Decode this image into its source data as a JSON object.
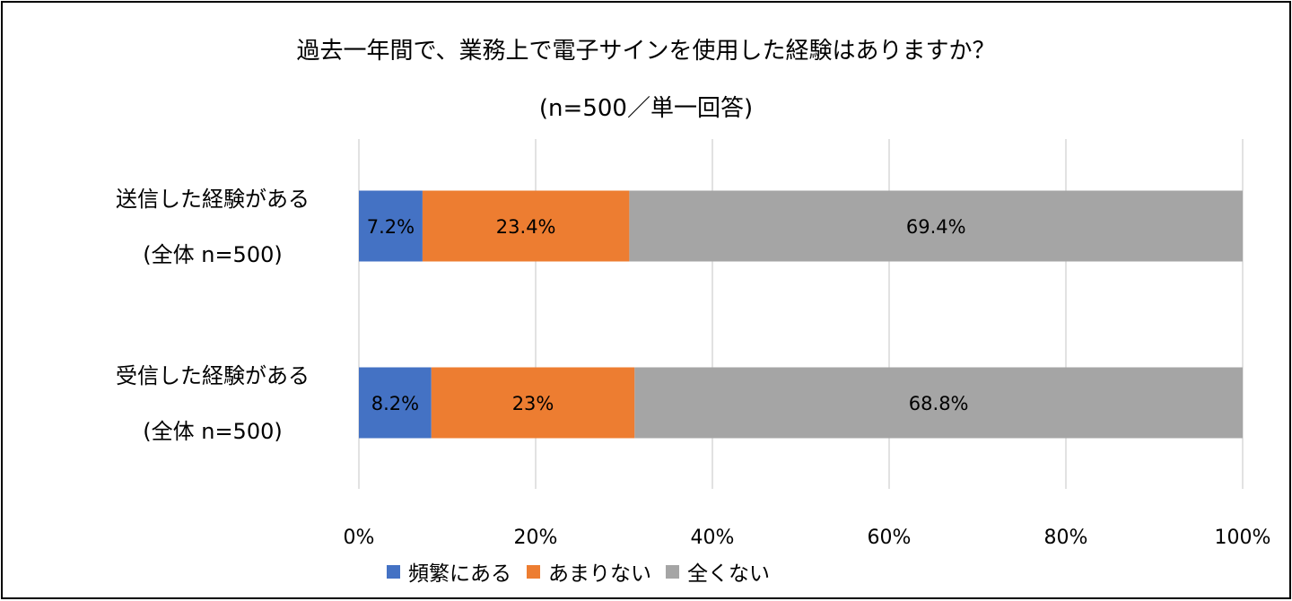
{
  "chart_data": {
    "type": "bar",
    "orientation": "horizontal",
    "stacked": true,
    "title": "過去一年間で、業務上で電子サインを使用した経験はありますか？",
    "subtitle": "(n=500／単一回答)",
    "categories": [
      [
        "送信した経験がある",
        "(全体 n=500)"
      ],
      [
        "受信した経験がある",
        "(全体 n=500)"
      ]
    ],
    "series": [
      {
        "name": "頻繁にある",
        "color": "#4472C4",
        "values": [
          7.2,
          8.2
        ],
        "labels": [
          "7.2%",
          "8.2%"
        ]
      },
      {
        "name": "あまりない",
        "color": "#ED7D31",
        "values": [
          23.4,
          23
        ],
        "labels": [
          "23.4%",
          "23%"
        ]
      },
      {
        "name": "全くない",
        "color": "#A5A5A5",
        "values": [
          69.4,
          68.8
        ],
        "labels": [
          "69.4%",
          "68.8%"
        ]
      }
    ],
    "xlim": [
      0,
      100
    ],
    "xticks": [
      "0%",
      "20%",
      "40%",
      "60%",
      "80%",
      "100%"
    ],
    "grid": true,
    "legend": "bottom"
  }
}
